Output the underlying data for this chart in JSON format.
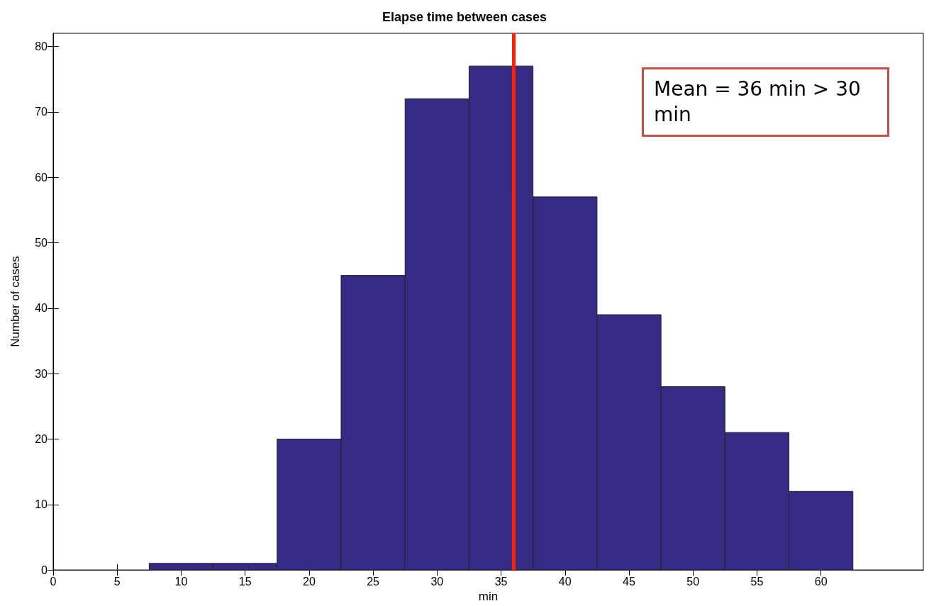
{
  "chart_data": {
    "type": "histogram",
    "title": "Elapse time between cases",
    "xlabel": "min",
    "ylabel": "Number of cases",
    "bins": [
      7.5,
      12.5,
      17.5,
      22.5,
      27.5,
      32.5,
      37.5,
      42.5,
      47.5,
      52.5,
      57.5,
      62.5
    ],
    "values": [
      1,
      1,
      20,
      45,
      72,
      77,
      57,
      39,
      28,
      21,
      12
    ],
    "color": "#352a84",
    "xlim": [
      0,
      68
    ],
    "xticks": [
      0,
      5,
      10,
      15,
      20,
      25,
      30,
      35,
      40,
      45,
      50,
      55,
      60
    ],
    "ylim": [
      0,
      82
    ],
    "yticks": [
      0,
      10,
      20,
      30,
      40,
      50,
      60,
      70,
      80
    ],
    "grid": false,
    "ref_lines": [
      {
        "axis": "x",
        "value": 36,
        "color": "#ff2200"
      }
    ],
    "annotations": [
      "Mean = 36 min > 30 min"
    ]
  }
}
